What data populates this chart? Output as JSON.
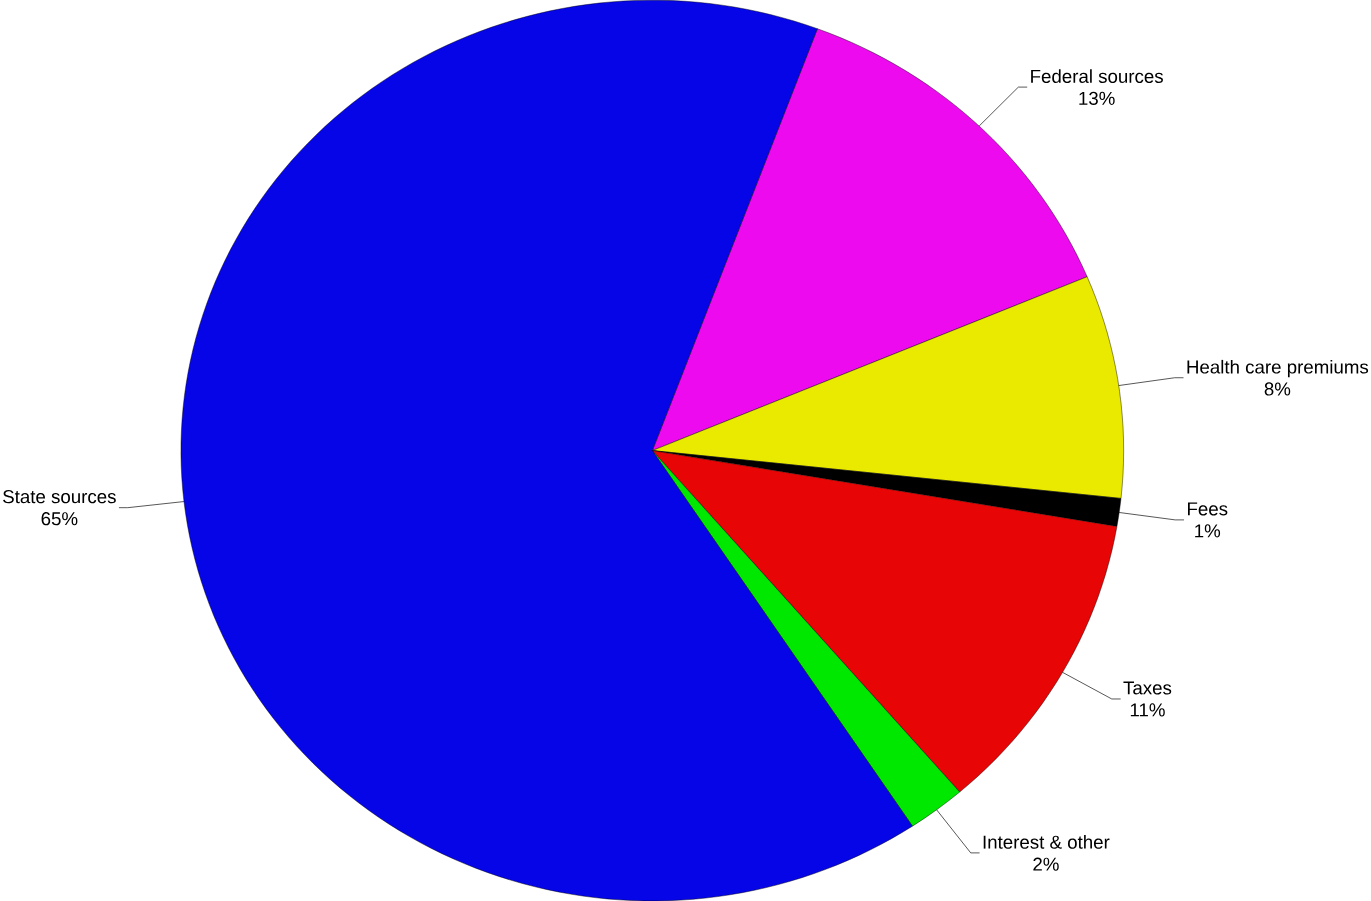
{
  "chart_data": {
    "type": "pie",
    "categories": [
      "Federal sources",
      "Health care premiums",
      "Fees",
      "Taxes",
      "Interest & other",
      "State sources"
    ],
    "values": [
      13,
      8,
      1,
      11,
      2,
      65
    ],
    "colors": [
      "#ee0aee",
      "#eaea00",
      "#000000",
      "#e80505",
      "#00e800",
      "#0505e8"
    ],
    "value_labels": [
      "13%",
      "8%",
      "1%",
      "11%",
      "2%",
      "65%"
    ]
  }
}
